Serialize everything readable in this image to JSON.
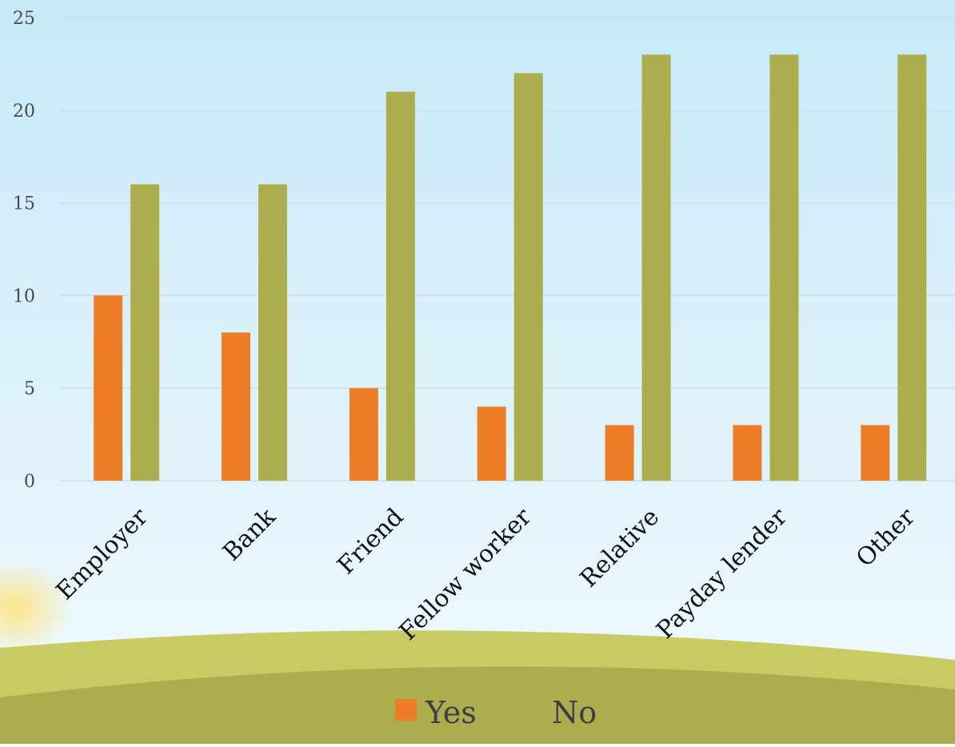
{
  "chart_data": {
    "type": "bar",
    "title": "",
    "xlabel": "",
    "ylabel": "",
    "categories": [
      "Employer",
      "Bank",
      "Friend",
      "Fellow worker",
      "Relative",
      "Payday lender",
      "Other"
    ],
    "series": [
      {
        "name": "Yes",
        "values": [
          10,
          8,
          5,
          4,
          3,
          3,
          3
        ],
        "color": "#ED7D27"
      },
      {
        "name": "No",
        "values": [
          16,
          16,
          21,
          22,
          23,
          23,
          23
        ],
        "color": "#ADAD4E"
      }
    ],
    "ylim": [
      0,
      25
    ],
    "yticks": [
      "0",
      "5",
      "10",
      "15",
      "20",
      "25"
    ],
    "grid": true,
    "legend_position": "bottom"
  },
  "colors": {
    "sky_top": "#C6E9F8",
    "sky_bottom": "#F2FAFD",
    "hill_light": "#C8CB64",
    "hill_dark": "#ADAD4E",
    "gridline": "#D2DCE4",
    "tick_text": "#4A4A4A"
  }
}
